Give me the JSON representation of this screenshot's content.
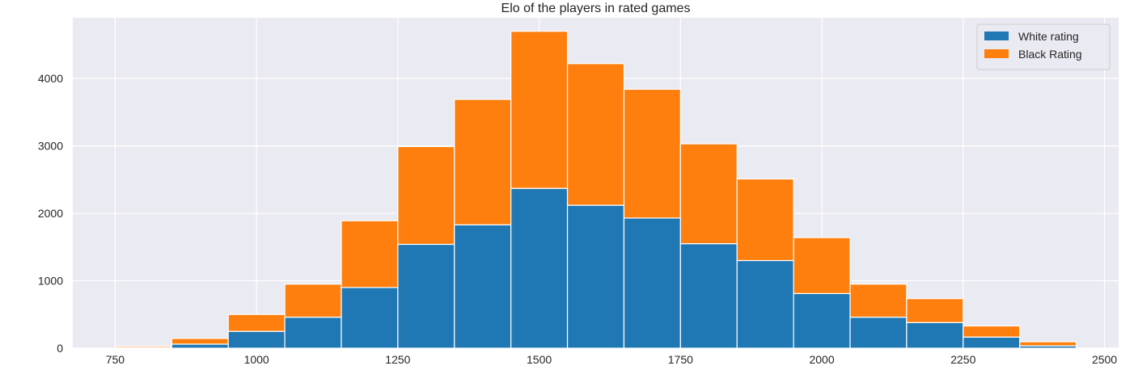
{
  "chart_data": {
    "type": "bar",
    "stacked": true,
    "histogram": true,
    "title": "Elo of the players in rated games",
    "xlabel": "",
    "ylabel": "",
    "xlim": [
      675,
      2525
    ],
    "ylim": [
      0,
      4900
    ],
    "xticks": [
      750,
      1000,
      1250,
      1500,
      1750,
      2000,
      2250,
      2500
    ],
    "yticks": [
      0,
      1000,
      2000,
      3000,
      4000
    ],
    "grid": true,
    "legend_position": "top-right",
    "bin_edges": [
      750,
      850,
      950,
      1050,
      1150,
      1250,
      1350,
      1450,
      1550,
      1650,
      1750,
      1850,
      1950,
      2050,
      2150,
      2250,
      2350,
      2450
    ],
    "series": [
      {
        "name": "White rating",
        "color": "#1f77b4",
        "values": [
          10,
          60,
          250,
          460,
          900,
          1540,
          1830,
          2370,
          2120,
          1930,
          1550,
          1300,
          810,
          460,
          380,
          165,
          35
        ]
      },
      {
        "name": "Black Rating",
        "color": "#ff7f0e",
        "values": [
          20,
          85,
          250,
          490,
          990,
          1450,
          1860,
          2330,
          2100,
          1910,
          1480,
          1210,
          830,
          490,
          355,
          165,
          60
        ]
      }
    ],
    "colors": {
      "background": "#eaeaf2",
      "grid": "#ffffff"
    }
  }
}
